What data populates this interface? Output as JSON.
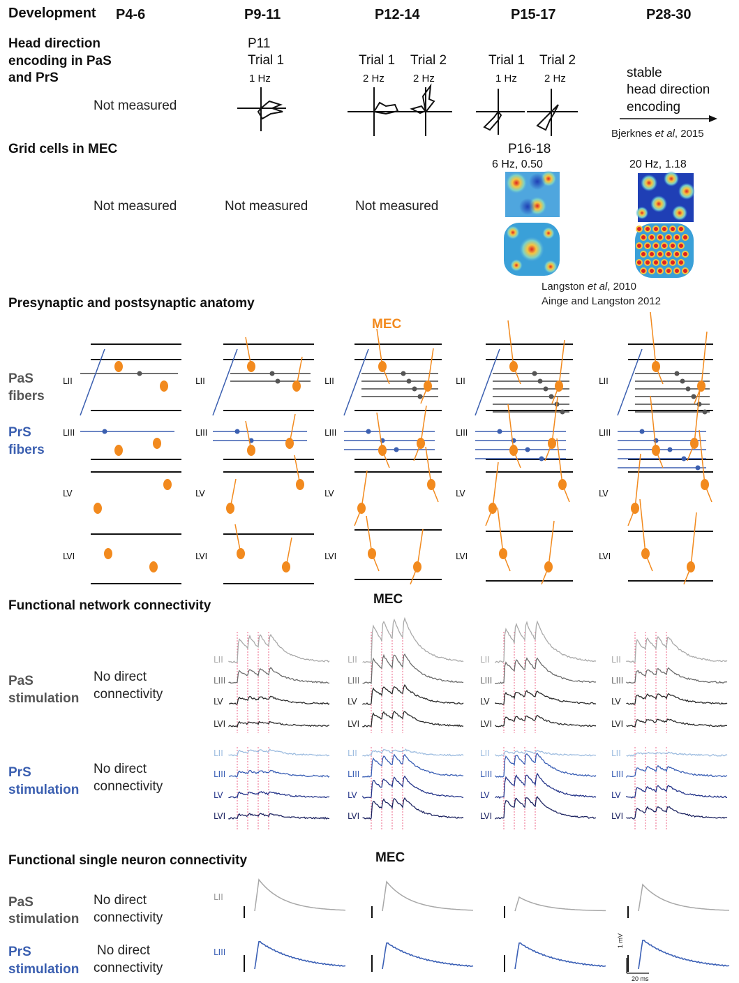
{
  "header": {
    "development": "Development",
    "ages": [
      "P4-6",
      "P9-11",
      "P12-14",
      "P15-17",
      "P28-30"
    ]
  },
  "hd": {
    "title": "Head direction encoding in PaS and PrS",
    "title_lines": [
      "Head direction",
      "encoding in PaS",
      "and PrS"
    ],
    "not_measured": "Not measured",
    "p11": "P11",
    "trial1": "Trial 1",
    "trial2": "Trial 2",
    "rates": {
      "p9_t1": "1 Hz",
      "p12_t1": "2 Hz",
      "p12_t2": "2 Hz",
      "p15_t1": "1 Hz",
      "p15_t2": "2 Hz"
    },
    "stable_lines": [
      "stable",
      "head direction",
      "encoding"
    ],
    "ref": "Bjerknes et al, 2015",
    "ref_plain": "Bjerknes ",
    "ref_italic": "et al",
    "ref_tail": ", 2015"
  },
  "grid": {
    "title": "Grid cells in MEC",
    "not_measured": "Not measured",
    "p16": "P16-18",
    "p16_stats": "6 Hz, 0.50",
    "p28_stats": "20 Hz, 1.18",
    "ref1_plain": "Langston ",
    "ref1_italic": "et al",
    "ref1_tail": ", 2010",
    "ref2": "Ainge and Langston 2012"
  },
  "anatomy": {
    "title": "Presynaptic and postsynaptic anatomy",
    "mec": "MEC",
    "pas_lines": [
      "PaS",
      "fibers"
    ],
    "prs_lines": [
      "PrS",
      "fibers"
    ],
    "layers": [
      "LII",
      "LIII",
      "LV",
      "LVI"
    ]
  },
  "network": {
    "title": "Functional network connectivity",
    "mec": "MEC",
    "pas_lines": [
      "PaS",
      "stimulation"
    ],
    "prs_lines": [
      "PrS",
      "stimulation"
    ],
    "no_direct_lines": [
      "No direct",
      "connectivity"
    ],
    "layers": [
      "LII",
      "LIII",
      "LV",
      "LVI"
    ]
  },
  "single": {
    "title": "Functional single neuron connectivity",
    "mec": "MEC",
    "pas_lines": [
      "PaS",
      "stimulation"
    ],
    "prs_lines": [
      "PrS",
      "stimulation"
    ],
    "no_direct_lines": [
      "No direct",
      "connectivity"
    ],
    "layer_pas": "LII",
    "layer_prs": "LIII",
    "scale_v": "1 mV",
    "scale_t": "20 ms"
  },
  "colors": {
    "orange": "#f28a1e",
    "pas_gray": "#555555",
    "prs_blue": "#3b5fb0",
    "trace_lgray": "#aaaaaa",
    "trace_mgray": "#6d6d6d",
    "trace_dark": "#2a2a2a",
    "blue_light": "#9ebde0",
    "blue_mid": "#3a5fb5",
    "blue_dark": "#25358a",
    "blue_darkest": "#1d2360",
    "stim_red": "#e8406a"
  }
}
